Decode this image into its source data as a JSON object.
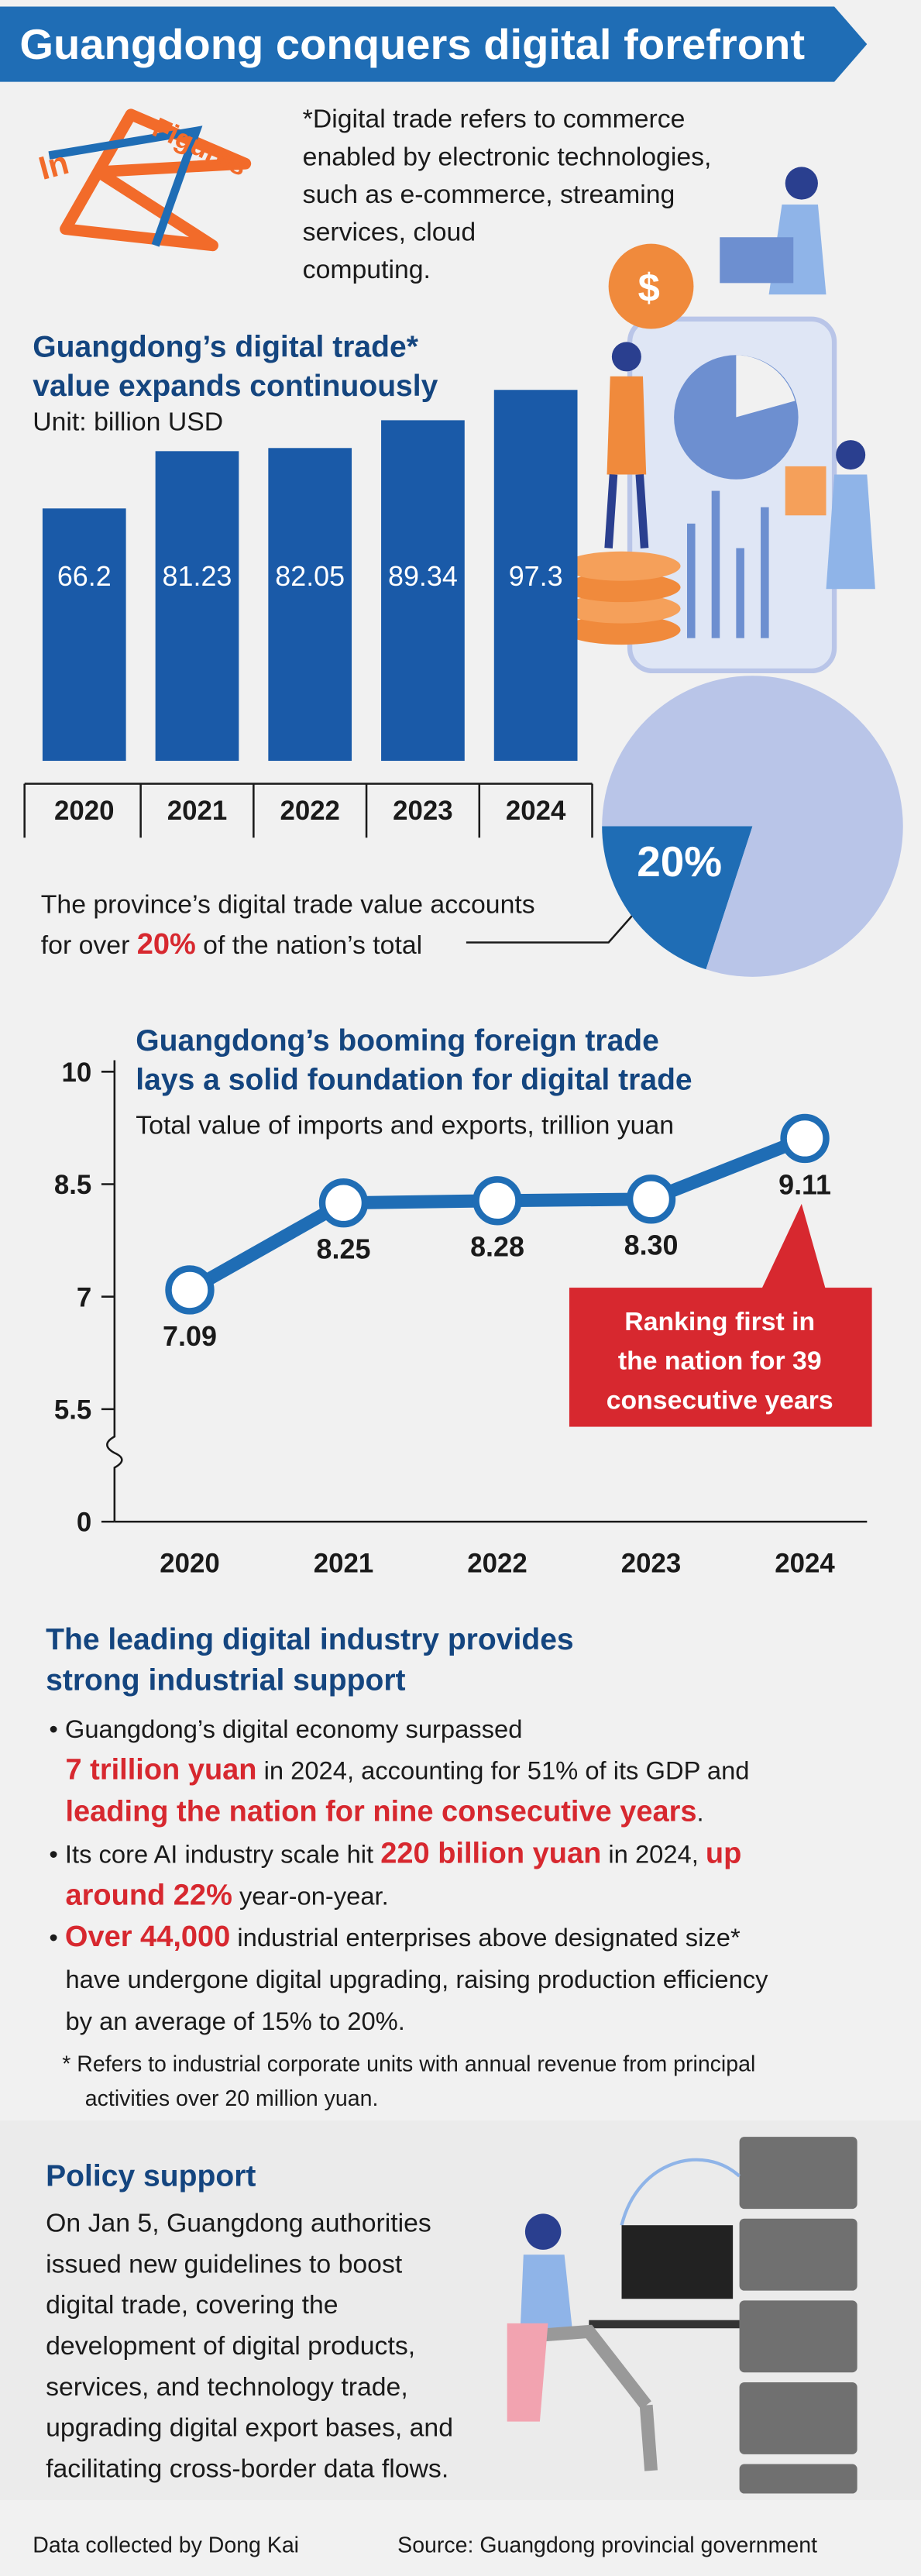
{
  "header": {
    "title": "Guangdong conquers digital forefront"
  },
  "logo": {
    "word1": "In",
    "word2": "Figures"
  },
  "note": [
    "*Digital trade refers to commerce",
    "enabled by electronic technologies,",
    "such as e-commerce, streaming",
    "services, cloud",
    "computing."
  ],
  "chart_data": [
    {
      "type": "bar",
      "title": [
        "Guangdong’s digital trade*",
        "value expands continuously"
      ],
      "subtitle": "Unit: billion USD",
      "categories": [
        "2020",
        "2021",
        "2022",
        "2023",
        "2024"
      ],
      "values": [
        66.2,
        81.23,
        82.05,
        89.34,
        97.3
      ],
      "color": "#1a5aa8",
      "ylim": [
        0,
        100
      ]
    },
    {
      "type": "pie",
      "values": [
        20,
        80
      ],
      "value_labels": [
        "20%",
        null
      ],
      "colors": [
        "#1f6db5",
        "#b9c5e8"
      ]
    },
    {
      "type": "line",
      "title": [
        "Guangdong’s booming foreign trade",
        "lays a solid foundation for digital trade"
      ],
      "subtitle": "Total value of imports and exports, trillion yuan",
      "categories": [
        "2020",
        "2021",
        "2022",
        "2023",
        "2024"
      ],
      "values": [
        7.09,
        8.25,
        8.28,
        8.3,
        9.11
      ],
      "value_labels": [
        "7.09",
        "8.25",
        "8.28",
        "8.30",
        "9.11"
      ],
      "color": "#1f6db5",
      "ylim": [
        4,
        10
      ],
      "yticks": [
        0,
        5.5,
        7,
        8.5,
        10
      ],
      "axis_break": true,
      "annotation": [
        "Ranking first in",
        "the nation for 39",
        "consecutive years"
      ],
      "annotation_color": "#d7282f"
    }
  ],
  "pie_caption": [
    [
      {
        "text": "The province’s digital trade value accounts"
      }
    ],
    [
      {
        "text": "for over "
      },
      {
        "text": "20%",
        "color": "#d7282f"
      },
      {
        "text": " of the nation’s total"
      }
    ]
  ],
  "industry": {
    "title": [
      "The leading digital industry provides",
      "strong industrial support"
    ],
    "bullets": [
      [
        [
          {
            "text": "• Guangdong’s digital economy surpassed"
          }
        ],
        [
          {
            "text": "7 trillion yuan",
            "color": "#d7282f"
          },
          {
            "text": " in 2024, accounting for 51% of its GDP and"
          }
        ],
        [
          {
            "text": "leading the nation for nine consecutive years",
            "color": "#d7282f"
          },
          {
            "text": "."
          }
        ]
      ],
      [
        [
          {
            "text": "• Its core AI industry scale hit "
          },
          {
            "text": "220 billion yuan",
            "color": "#d7282f"
          },
          {
            "text": " in 2024, "
          },
          {
            "text": "up",
            "color": "#d7282f"
          }
        ],
        [
          {
            "text": "around 22%",
            "color": "#d7282f"
          },
          {
            "text": " year-on-year."
          }
        ]
      ],
      [
        [
          {
            "text": "• "
          },
          {
            "text": "Over 44,000",
            "color": "#d7282f"
          },
          {
            "text": " industrial enterprises above designated size*"
          }
        ],
        [
          {
            "text": "have undergone digital upgrading, raising production efficiency"
          }
        ],
        [
          {
            "text": "by an average of 15% to 20%."
          }
        ]
      ]
    ],
    "footnote": [
      "* Refers to industrial corporate units with annual revenue from principal",
      "activities over 20 million yuan."
    ]
  },
  "policy": {
    "title": "Policy support",
    "text": [
      "On Jan 5, Guangdong authorities",
      "issued new guidelines to boost",
      "digital trade, covering the",
      "development of digital products,",
      "services, and technology trade,",
      "upgrading digital export bases, and",
      "facilitating cross-border data flows."
    ]
  },
  "footer": {
    "credit": "Data collected by Dong Kai",
    "source": "Source: Guangdong provincial government"
  }
}
